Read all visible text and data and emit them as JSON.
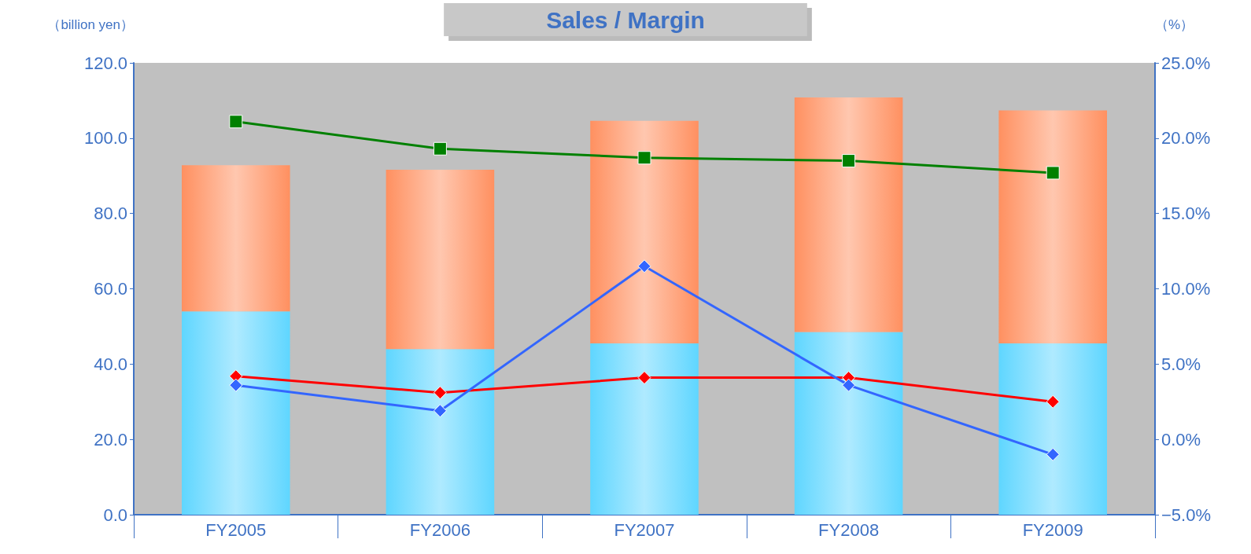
{
  "chart_data": {
    "type": "bar",
    "title": "Sales / Margin",
    "ylabel": "（billion yen）",
    "y2label": "（%）",
    "categories": [
      "FY2005",
      "FY2006",
      "FY2007",
      "FY2008",
      "FY2009"
    ],
    "stacked": true,
    "series": [
      {
        "color": "#5fd6ff",
        "values": [
          54.0,
          44.0,
          45.5,
          48.5,
          45.5
        ]
      },
      {
        "color": "#ff9060",
        "values": [
          38.8,
          47.6,
          59.1,
          62.3,
          61.9
        ]
      },
      {
        "type": "line",
        "axis": "y2",
        "color": "#008000",
        "marker": "square",
        "values": [
          21.1,
          19.3,
          18.7,
          18.5,
          17.7
        ]
      },
      {
        "type": "line",
        "axis": "y2",
        "color": "#ff0000",
        "marker": "diamond",
        "values": [
          4.2,
          3.1,
          4.1,
          4.1,
          2.5
        ]
      },
      {
        "type": "line",
        "axis": "y2",
        "color": "#3366ff",
        "marker": "diamond",
        "values": [
          3.6,
          1.9,
          11.5,
          3.6,
          -1.0
        ]
      }
    ],
    "ylim": [
      0,
      120
    ],
    "yticks": [
      {
        "value": 0,
        "label": "0.0"
      },
      {
        "value": 20,
        "label": "20.0"
      },
      {
        "value": 40,
        "label": "40.0"
      },
      {
        "value": 60,
        "label": "60.0"
      },
      {
        "value": 80,
        "label": "80.0"
      },
      {
        "value": 100,
        "label": "100.0"
      },
      {
        "value": 120,
        "label": "120.0"
      }
    ],
    "y2lim": [
      -5,
      25
    ],
    "y2ticks": [
      {
        "value": -5,
        "label": "−5.0%"
      },
      {
        "value": 0,
        "label": "0.0%"
      },
      {
        "value": 5,
        "label": "5.0%"
      },
      {
        "value": 10,
        "label": "10.0%"
      },
      {
        "value": 15,
        "label": "15.0%"
      },
      {
        "value": 20,
        "label": "20.0%"
      },
      {
        "value": 25,
        "label": "25.0%"
      }
    ],
    "grid": false
  }
}
